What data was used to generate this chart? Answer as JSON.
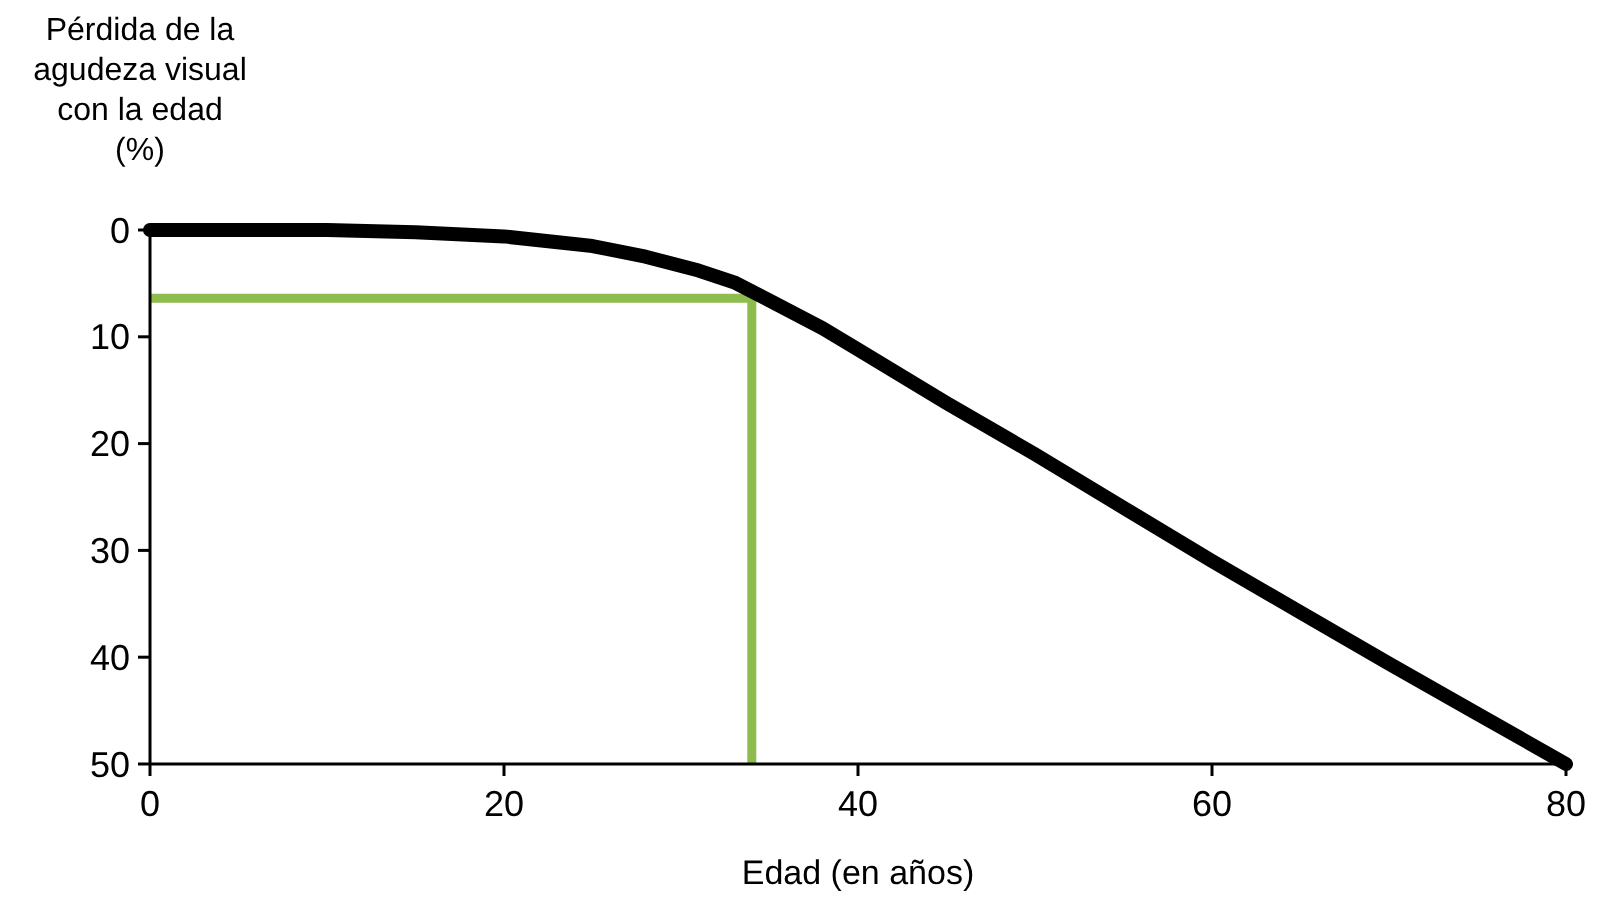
{
  "chart_data": {
    "type": "line",
    "xlabel": "Edad (en años)",
    "ylabel": "Pérdida de la\nagudeza visual\ncon la edad\n(%)",
    "xlim": [
      0,
      80
    ],
    "xticks": [
      0,
      20,
      40,
      60,
      80
    ],
    "ylim": [
      50,
      0
    ],
    "yticks": [
      0,
      10,
      20,
      30,
      40,
      50
    ],
    "grid": false,
    "series": [
      {
        "color": "#000000",
        "x": [
          0,
          5,
          10,
          15,
          20,
          25,
          28,
          31,
          33,
          35,
          38,
          40,
          45,
          50,
          55,
          60,
          65,
          70,
          75,
          80
        ],
        "values": [
          0,
          0,
          0,
          0.2,
          0.6,
          1.5,
          2.5,
          3.8,
          4.9,
          6.6,
          9.2,
          11.2,
          16.2,
          21,
          26,
          31,
          35.8,
          40.6,
          45.3,
          50
        ]
      },
      {
        "color": "#8fbc4f",
        "x": [
          0,
          34,
          34
        ],
        "values": [
          6.4,
          6.4,
          50
        ]
      }
    ]
  }
}
